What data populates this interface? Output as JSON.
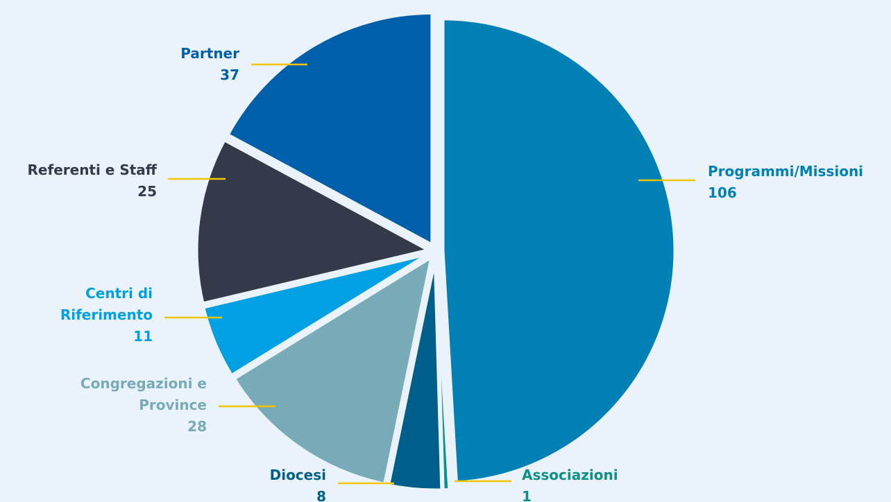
{
  "chart_data": {
    "type": "pie",
    "categories": [
      "Programmi/Missioni",
      "Associazioni",
      "Diocesi",
      "Congregazioni e Province",
      "Centri di Riferimento",
      "Referenti e Staff",
      "Partner"
    ],
    "values": [
      106,
      1,
      8,
      28,
      11,
      25,
      37
    ],
    "colors": [
      "#0080b4",
      "#0e8f87",
      "#005f8a",
      "#78abb7",
      "#00a0e3",
      "#343a4a",
      "#005fab"
    ],
    "leader_color": "#f2c500"
  }
}
